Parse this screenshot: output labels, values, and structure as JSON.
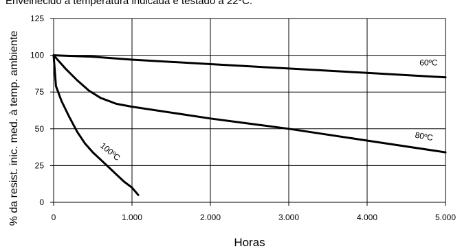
{
  "header": {
    "title": "Envelhecido à temperatura indicada e testado a 22ºC."
  },
  "chart_data": {
    "type": "line",
    "title": "Envelhecido à temperatura indicada e testado a 22ºC.",
    "xlabel": "Horas",
    "ylabel": "% da resist. inic. med. à temp. ambiente",
    "xlim": [
      0,
      5000
    ],
    "ylim": [
      0,
      125
    ],
    "grid": true,
    "x_ticks": [
      0,
      1000,
      2000,
      3000,
      4000,
      5000
    ],
    "x_tick_labels": [
      "0",
      "1.000",
      "2.000",
      "3.000",
      "4.000",
      "5.000"
    ],
    "y_ticks": [
      0,
      25,
      50,
      75,
      100,
      125
    ],
    "y_tick_labels": [
      "0",
      "25",
      "50",
      "75",
      "100",
      "125"
    ],
    "series": [
      {
        "name": "60ºC",
        "x": [
          0,
          500,
          1000,
          2000,
          3000,
          4000,
          5000
        ],
        "y": [
          100,
          99,
          97,
          94,
          91,
          88,
          85
        ]
      },
      {
        "name": "80ºC",
        "x": [
          0,
          150,
          300,
          450,
          600,
          800,
          1000,
          2000,
          3000,
          4000,
          5000
        ],
        "y": [
          100,
          91,
          83,
          76,
          71,
          67,
          65,
          57,
          50,
          42,
          34
        ]
      },
      {
        "name": "100ºC",
        "x": [
          0,
          30,
          100,
          200,
          300,
          400,
          500,
          600,
          700,
          800,
          900,
          1000,
          1080
        ],
        "y": [
          100,
          79,
          69,
          58,
          48,
          40,
          34,
          29,
          24,
          19,
          14,
          10,
          5
        ]
      }
    ]
  }
}
